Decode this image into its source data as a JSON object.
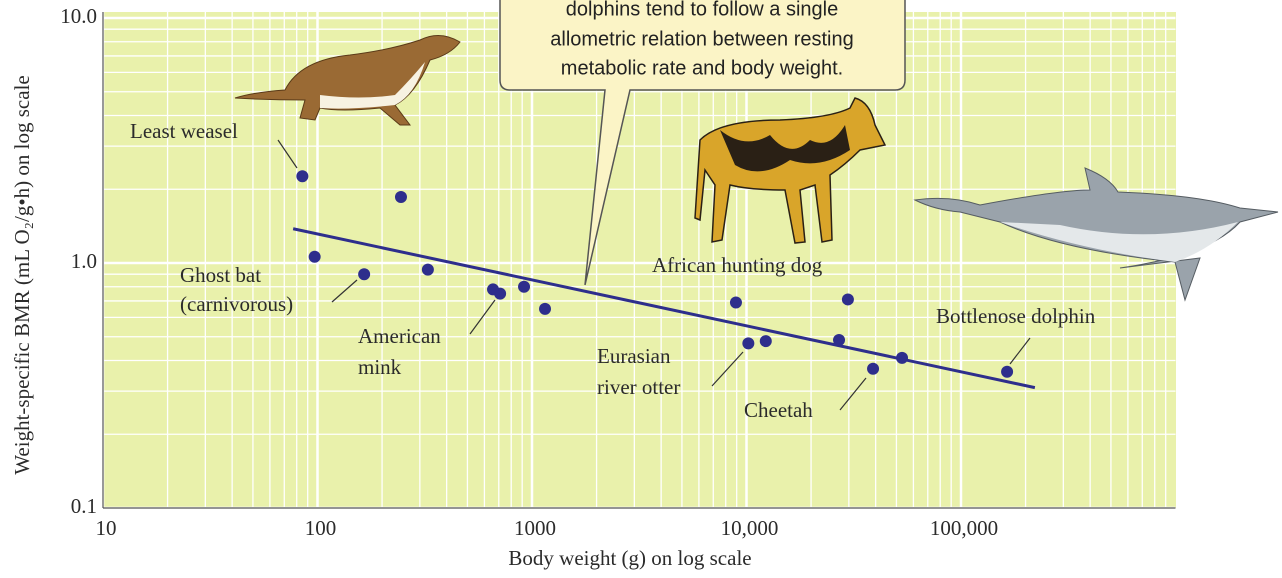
{
  "chart_data": {
    "type": "scatter",
    "x_label": "Body weight (g) on log scale",
    "y_label": "Weight-specific BMR (mL O₂/g•h) on log scale",
    "x": [
      85,
      97,
      165,
      245,
      327,
      658,
      710,
      918,
      1150,
      8930,
      10200,
      12300,
      27000,
      29700,
      38900,
      53100,
      164000
    ],
    "values": [
      2.26,
      1.06,
      0.9,
      1.86,
      0.94,
      0.78,
      0.75,
      0.8,
      0.65,
      0.69,
      0.47,
      0.48,
      0.485,
      0.71,
      0.37,
      0.41,
      0.36
    ],
    "color": "#2e2e8c",
    "fit_line": {
      "x": [
        77,
        221000
      ],
      "values": [
        1.38,
        0.31
      ],
      "color": "#2e2e8c"
    },
    "xlim": [
      10,
      1000000
    ],
    "ylim": [
      0.1,
      10
    ],
    "xticks": [
      10,
      100,
      1000,
      {
        "value": 10000,
        "label": "10,000"
      },
      {
        "value": 100000,
        "label": "100,000"
      }
    ],
    "yticks": [
      0.1,
      {
        "value": 1,
        "label": "1.0"
      },
      {
        "value": 10,
        "label": "10.0"
      }
    ],
    "log_x": true,
    "log_y": true,
    "grid": true,
    "annotations": [
      {
        "lines": [
          "Least weasel"
        ]
      },
      {
        "lines": [
          "Ghost bat",
          "(carnivorous)"
        ]
      },
      {
        "lines": [
          "American",
          "mink"
        ]
      },
      {
        "lines": [
          "African hunting dog"
        ]
      },
      {
        "lines": [
          "Eurasian",
          "river otter"
        ]
      },
      {
        "lines": [
          "Cheetah"
        ]
      },
      {
        "lines": [
          "Bottlenose dolphin"
        ]
      }
    ],
    "callout": {
      "lines": [
        "dolphins tend to follow a single",
        "allometric relation between resting",
        "metabolic rate and body weight."
      ]
    }
  }
}
